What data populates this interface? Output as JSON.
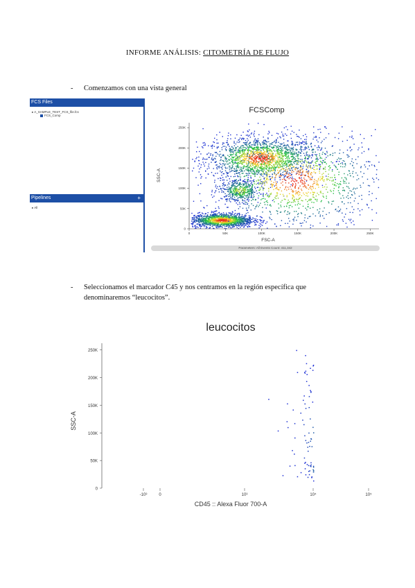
{
  "title": {
    "prefix": "INFORME ANÁLISIS: ",
    "underlined": "CITOMETRÍA DE FLUJO"
  },
  "bullets": [
    {
      "dash": "-",
      "line1": "Comenzamos con una vista general",
      "line2": ""
    },
    {
      "dash": "-",
      "line1": "Seleccionamos el marcador C45 y nos centramos en la región específica que",
      "line2": "denominaremos “leucocitos”."
    }
  ],
  "software": {
    "fcs_files_header": "FCS Files",
    "tree_item_1": "▸ A_SAMPLE_TEST_FCS_file.fcs",
    "tree_item_2": "FCS_Comp",
    "pipelines_header": "Pipelines",
    "pipelines_plus": "+",
    "pipeline_item": "▸ All",
    "status_text": "Parameters: All Events Count: 411,342"
  },
  "colors": {
    "accent_blue": "#1d4fa6",
    "density_low": "#1b2bd6",
    "density_mid": "#21c43b",
    "density_high": "#f5d92a",
    "density_peak": "#e8231a"
  },
  "chart_data": [
    {
      "type": "scatter",
      "title": "FCSComp",
      "xlabel": "FSC-A",
      "ylabel": "SSC-A",
      "xticks": [
        "0",
        "50K",
        "100K",
        "150K",
        "200K",
        "250K"
      ],
      "yticks": [
        "0",
        "50K",
        "100K",
        "150K",
        "200K",
        "250K"
      ],
      "xlim": [
        0,
        262144
      ],
      "ylim": [
        0,
        262144
      ],
      "populations": [
        {
          "x": 98000,
          "y": 175000,
          "sx": 38000,
          "sy": 26000,
          "n": 1600
        },
        {
          "x": 45000,
          "y": 22000,
          "sx": 22000,
          "sy": 9000,
          "n": 1300
        },
        {
          "x": 70000,
          "y": 95000,
          "sx": 14000,
          "sy": 14000,
          "n": 400
        },
        {
          "x": 145000,
          "y": 120000,
          "sx": 60000,
          "sy": 60000,
          "n": 1400
        }
      ]
    },
    {
      "type": "scatter",
      "title": "leucocitos",
      "xlabel": "CD45 :: Alexa Fluor 700-A",
      "ylabel": "SSC-A",
      "xticks": [
        "-10³",
        "0",
        "10³",
        "10⁴",
        "10⁵"
      ],
      "yticks": [
        "0",
        "50K",
        "100K",
        "150K",
        "200K",
        "250K"
      ],
      "xscale": "biexponential",
      "ylim": [
        0,
        262144
      ],
      "populations": [
        {
          "x": 4.55,
          "y": 200000,
          "sx": 0.22,
          "sy": 34000,
          "n": 1900
        },
        {
          "x": 4.85,
          "y": 32000,
          "sx": 0.18,
          "sy": 12000,
          "n": 1300
        },
        {
          "x": 4.85,
          "y": 100000,
          "sx": 0.13,
          "sy": 17000,
          "n": 600
        },
        {
          "x": 5.1,
          "y": 205000,
          "sx": 0.08,
          "sy": 18000,
          "n": 300
        },
        {
          "x": 4.2,
          "y": 35000,
          "sx": 0.15,
          "sy": 9000,
          "n": 250
        },
        {
          "x": 4.7,
          "y": 100000,
          "sx": 0.45,
          "sy": 70000,
          "n": 900
        }
      ]
    }
  ]
}
